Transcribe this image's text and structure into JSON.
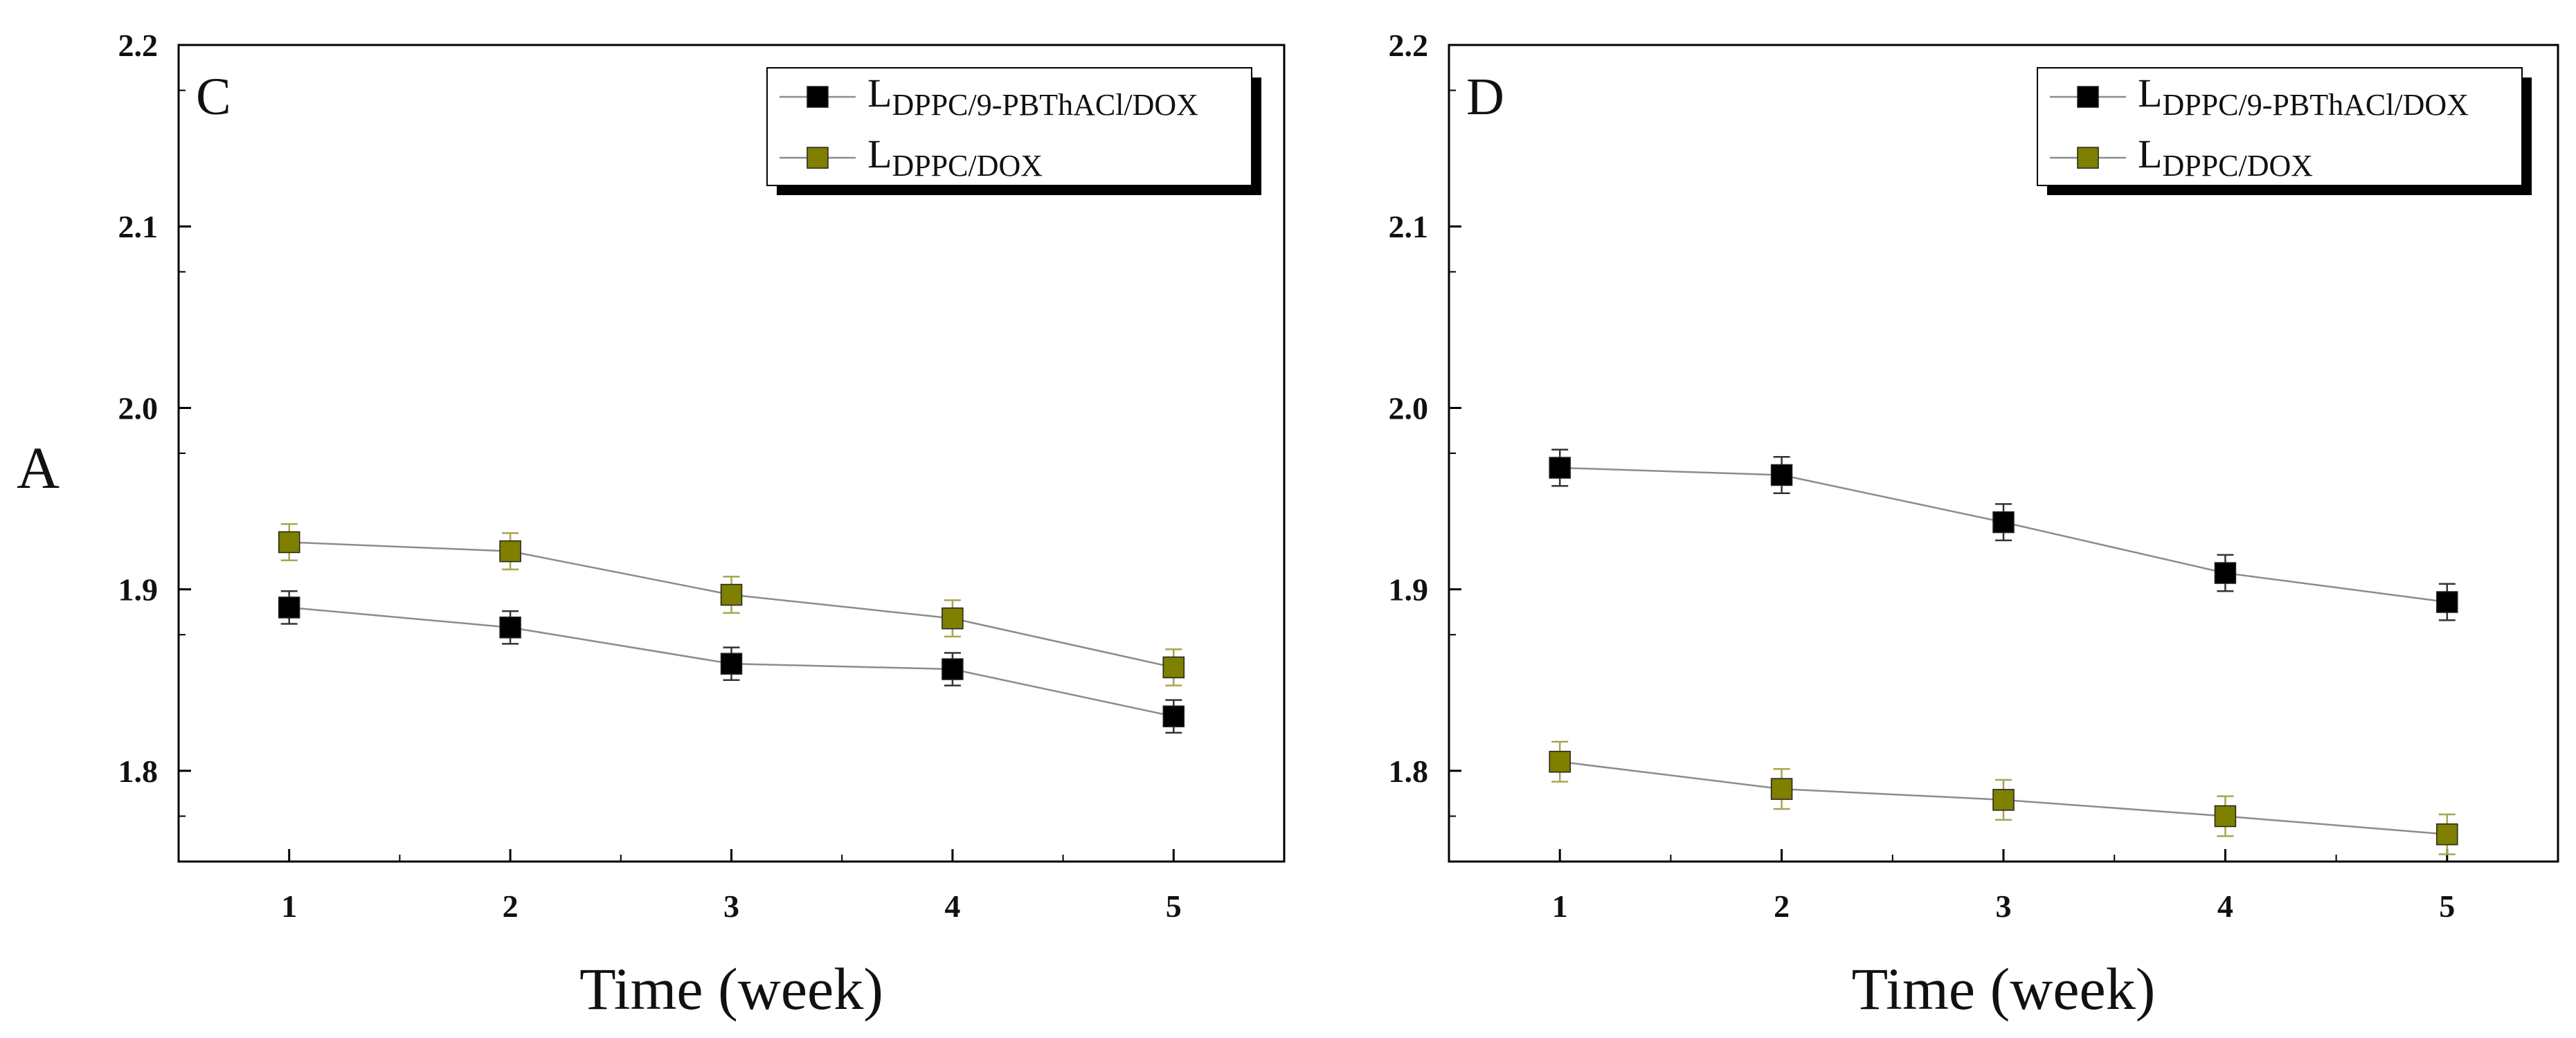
{
  "chart_data": [
    {
      "type": "line",
      "panel_label": "C",
      "xlabel": "Time (week)",
      "ylabel": "A",
      "x": [
        1,
        2,
        3,
        4,
        5
      ],
      "xlim": [
        0.5,
        5.5
      ],
      "ylim": [
        1.75,
        2.2
      ],
      "yticks": [
        "1.8",
        "1.9",
        "2.0",
        "2.1",
        "2.2"
      ],
      "xticks": [
        "1",
        "2",
        "3",
        "4",
        "5"
      ],
      "legend_position": "top-right",
      "series": [
        {
          "name": "L",
          "subscript": "DPPC/9-PBThACl/DOX",
          "color": "#000000",
          "values": [
            1.89,
            1.879,
            1.859,
            1.856,
            1.83
          ],
          "error": [
            0.009,
            0.009,
            0.009,
            0.009,
            0.009
          ]
        },
        {
          "name": "L",
          "subscript": "DPPC/DOX",
          "color": "#7f7f00",
          "values": [
            1.926,
            1.921,
            1.897,
            1.884,
            1.857
          ],
          "error": [
            0.01,
            0.01,
            0.01,
            0.01,
            0.01
          ]
        }
      ]
    },
    {
      "type": "line",
      "panel_label": "D",
      "xlabel": "Time (week)",
      "ylabel": "",
      "x": [
        1,
        2,
        3,
        4,
        5
      ],
      "xlim": [
        0.5,
        5.5
      ],
      "ylim": [
        1.75,
        2.2
      ],
      "yticks": [
        "1.8",
        "1.9",
        "2.0",
        "2.1",
        "2.2"
      ],
      "xticks": [
        "1",
        "2",
        "3",
        "4",
        "5"
      ],
      "legend_position": "top-right",
      "series": [
        {
          "name": "L",
          "subscript": "DPPC/9-PBThACl/DOX",
          "color": "#000000",
          "values": [
            1.967,
            1.963,
            1.937,
            1.909,
            1.893
          ],
          "error": [
            0.01,
            0.01,
            0.01,
            0.01,
            0.01
          ]
        },
        {
          "name": "L",
          "subscript": "DPPC/DOX",
          "color": "#7f7f00",
          "values": [
            1.805,
            1.79,
            1.784,
            1.775,
            1.765
          ],
          "error": [
            0.011,
            0.011,
            0.011,
            0.011,
            0.011
          ]
        }
      ]
    }
  ]
}
